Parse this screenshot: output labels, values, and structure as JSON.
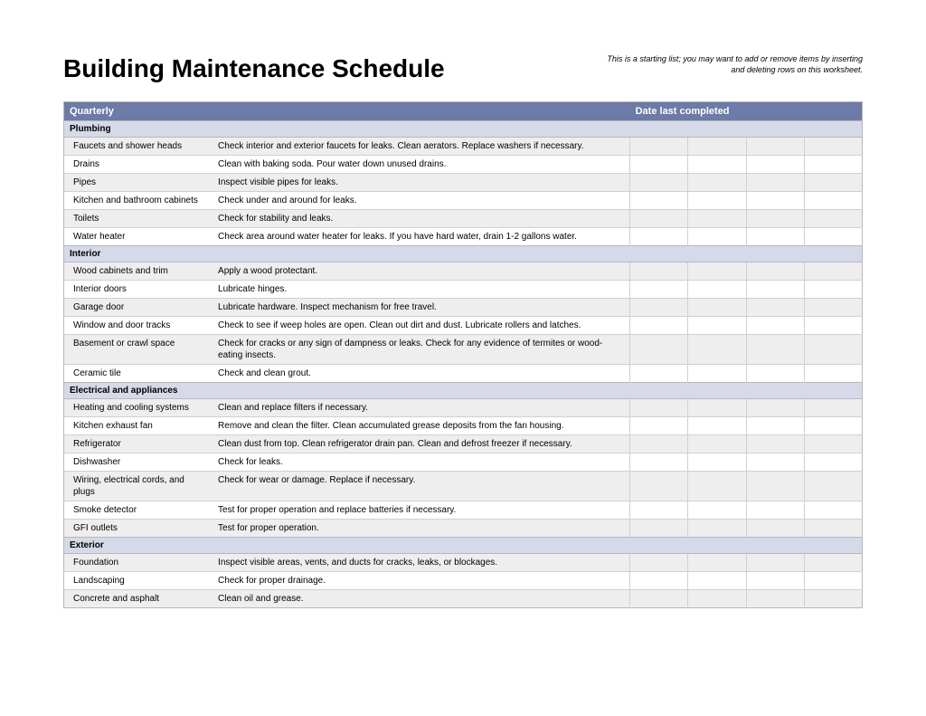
{
  "title": "Building Maintenance Schedule",
  "note": "This is a starting list; you may want to add or remove items by inserting and deleting rows on this worksheet.",
  "header": {
    "period": "Quarterly",
    "date_label": "Date last completed"
  },
  "styling": {
    "header_bg": "#6c7ba7",
    "header_fg": "#ffffff",
    "section_bg": "#d6dae8",
    "row_odd_bg": "#eeeeee",
    "row_even_bg": "#ffffff",
    "border_color": "#b8b8b8",
    "title_fontsize": 28,
    "body_fontsize": 10,
    "note_fontsize": 9,
    "date_columns": 4,
    "column_widths": {
      "item": 164,
      "desc": 460,
      "date": 64
    }
  },
  "sections": [
    {
      "name": "Plumbing",
      "items": [
        {
          "item": "Faucets and shower heads",
          "desc": "Check interior and exterior faucets for leaks. Clean aerators. Replace washers if necessary."
        },
        {
          "item": "Drains",
          "desc": "Clean with baking soda. Pour water down unused drains."
        },
        {
          "item": "Pipes",
          "desc": "Inspect visible pipes for leaks."
        },
        {
          "item": "Kitchen and bathroom cabinets",
          "desc": "Check under and around for leaks."
        },
        {
          "item": "Toilets",
          "desc": "Check for stability and leaks."
        },
        {
          "item": "Water heater",
          "desc": "Check area around water heater for leaks. If you have hard water, drain 1-2 gallons water."
        }
      ]
    },
    {
      "name": "Interior",
      "items": [
        {
          "item": "Wood cabinets and trim",
          "desc": "Apply a wood protectant."
        },
        {
          "item": "Interior doors",
          "desc": "Lubricate hinges."
        },
        {
          "item": "Garage door",
          "desc": "Lubricate hardware. Inspect mechanism for free travel."
        },
        {
          "item": "Window and door tracks",
          "desc": "Check to see if weep holes are open. Clean out dirt and dust. Lubricate rollers and latches."
        },
        {
          "item": "Basement or crawl space",
          "desc": "Check for cracks or any sign of dampness or leaks. Check for any evidence of termites or wood-eating insects."
        },
        {
          "item": "Ceramic tile",
          "desc": "Check and clean grout."
        }
      ]
    },
    {
      "name": "Electrical and appliances",
      "items": [
        {
          "item": "Heating and cooling systems",
          "desc": "Clean and replace filters if necessary."
        },
        {
          "item": "Kitchen exhaust fan",
          "desc": "Remove and clean the filter. Clean accumulated grease deposits from the fan housing."
        },
        {
          "item": "Refrigerator",
          "desc": "Clean dust from top. Clean refrigerator drain pan. Clean and defrost freezer if necessary."
        },
        {
          "item": "Dishwasher",
          "desc": "Check for leaks."
        },
        {
          "item": "Wiring, electrical cords, and plugs",
          "desc": "Check for wear or damage. Replace if necessary."
        },
        {
          "item": "Smoke detector",
          "desc": "Test for proper operation and replace batteries if necessary."
        },
        {
          "item": "GFI outlets",
          "desc": "Test for proper operation."
        }
      ]
    },
    {
      "name": "Exterior",
      "items": [
        {
          "item": "Foundation",
          "desc": "Inspect visible areas, vents, and ducts for cracks, leaks, or blockages."
        },
        {
          "item": "Landscaping",
          "desc": "Check for proper drainage."
        },
        {
          "item": "Concrete and asphalt",
          "desc": "Clean oil and grease."
        }
      ]
    }
  ]
}
